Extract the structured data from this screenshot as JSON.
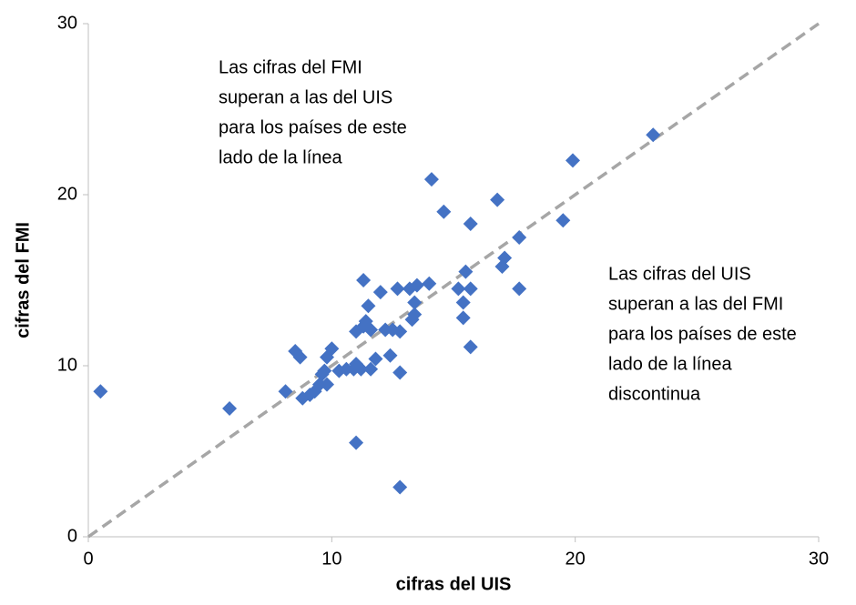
{
  "chart_data": {
    "type": "scatter",
    "x_label": "cifras del UIS",
    "y_label": "cifras del FMI",
    "color": "#4472c4",
    "xlim": [
      0,
      30
    ],
    "ylim": [
      0,
      30
    ],
    "xticks": [
      0,
      10,
      20,
      30
    ],
    "yticks": [
      0,
      10,
      20,
      30
    ],
    "grid": false,
    "x": [
      0.5,
      5.8,
      8.1,
      8.5,
      8.7,
      8.8,
      9.1,
      9.3,
      9.5,
      9.6,
      9.7,
      9.8,
      9.8,
      10.0,
      10.3,
      10.6,
      10.9,
      11.0,
      11.2,
      11.0,
      11.3,
      11.4,
      11.3,
      11.5,
      11.6,
      11.6,
      11.8,
      11.0,
      12.0,
      12.2,
      12.4,
      12.5,
      12.7,
      12.8,
      12.8,
      12.8,
      13.2,
      13.3,
      13.4,
      13.4,
      13.5,
      14.0,
      14.1,
      14.6,
      15.2,
      15.4,
      15.4,
      15.5,
      15.7,
      15.7,
      15.7,
      16.8,
      17.0,
      17.1,
      17.7,
      17.7,
      19.5,
      19.9,
      23.2
    ],
    "values": [
      8.5,
      7.5,
      8.5,
      10.85,
      10.5,
      8.1,
      8.3,
      8.5,
      8.9,
      9.5,
      9.7,
      8.9,
      10.5,
      11.0,
      9.7,
      9.8,
      9.8,
      10.1,
      9.8,
      12.0,
      12.3,
      12.6,
      15.0,
      13.5,
      12.1,
      9.8,
      10.4,
      5.5,
      14.3,
      12.1,
      10.6,
      12.1,
      14.5,
      12.0,
      9.6,
      2.9,
      14.5,
      12.7,
      13.0,
      13.7,
      14.7,
      14.8,
      20.9,
      19.0,
      14.5,
      12.8,
      13.7,
      15.5,
      14.5,
      11.1,
      18.3,
      19.7,
      15.8,
      16.3,
      14.5,
      17.5,
      18.5,
      22.0,
      23.5
    ],
    "annotations": [
      {
        "lines": [
          "Las cifras del FMI",
          "superan a las del UIS",
          "para los países de este",
          "lado de la línea"
        ]
      },
      {
        "lines": [
          "Las cifras del UIS",
          "superan a las del FMI",
          "para los países de este",
          "lado de la línea",
          "discontinua"
        ]
      }
    ]
  }
}
